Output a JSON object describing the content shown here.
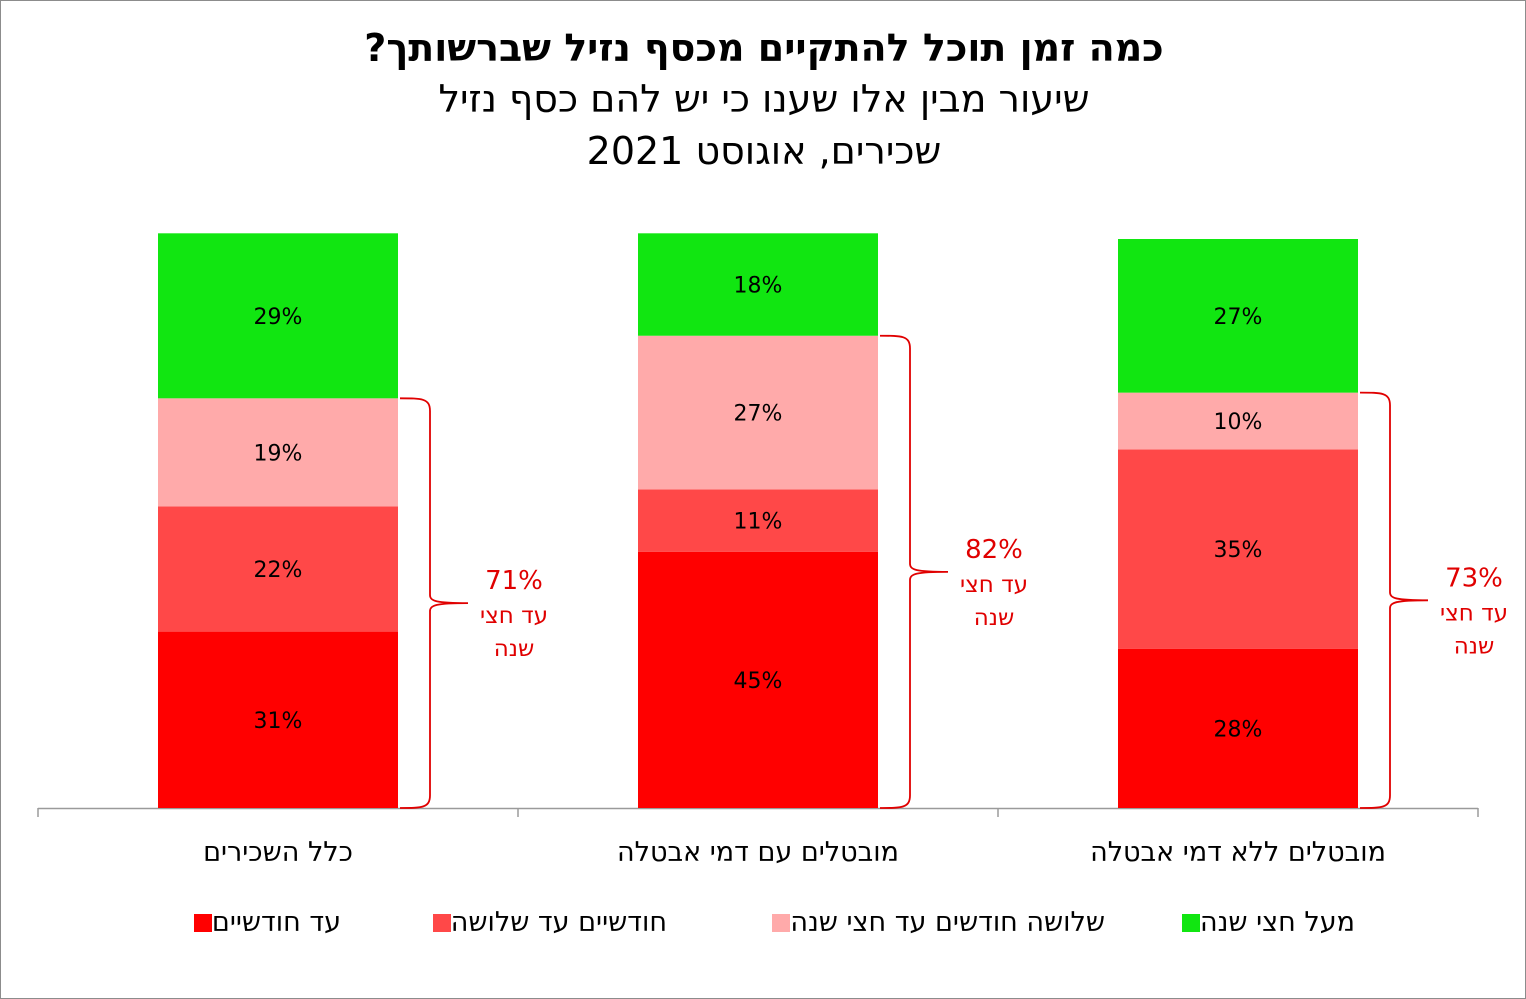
{
  "chart_data": {
    "type": "bar",
    "stacked": true,
    "title": "כמה זמן תוכל להתקיים מכסף נזיל שברשותך?",
    "subtitle_lines": [
      "שיעור מבין אלו שענו כי יש להם כסף נזיל",
      "שכירים, אוגוסט 2021"
    ],
    "categories": [
      "כלל השכירים",
      "מובטלים עם דמי אבטלה",
      "מובטלים ללא דמי אבטלה"
    ],
    "series": [
      {
        "name": "עד חודשיים",
        "color": "#ff0000",
        "values": [
          31,
          45,
          28
        ],
        "labels": [
          "31%",
          "45%",
          "28%"
        ]
      },
      {
        "name": "חודשיים עד שלושה",
        "color": "#ff4848",
        "values": [
          22,
          11,
          35
        ],
        "labels": [
          "22%",
          "11%",
          "35%"
        ]
      },
      {
        "name": "שלושה חודשים עד חצי שנה",
        "color": "#ffaaaa",
        "values": [
          19,
          27,
          10
        ],
        "labels": [
          "19%",
          "27%",
          "10%"
        ]
      },
      {
        "name": "מעל חצי שנה",
        "color": "#11e611",
        "values": [
          29,
          18,
          27
        ],
        "labels": [
          "29%",
          "18%",
          "27%"
        ]
      }
    ],
    "ylim": [
      0,
      100
    ],
    "grid": false,
    "legend_position": "bottom",
    "annotations": [
      {
        "value": "71%",
        "line1": "עד חצי",
        "line2": "שנה"
      },
      {
        "value": "82%",
        "line1": "עד חצי",
        "line2": "שנה"
      },
      {
        "value": "73%",
        "line1": "עד חצי",
        "line2": "שנה"
      }
    ],
    "annotation_color": "#e00000"
  }
}
